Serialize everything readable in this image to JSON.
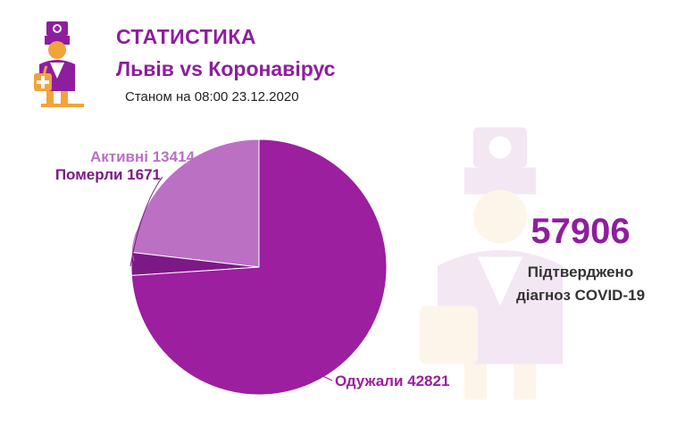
{
  "header": {
    "title": "СТАТИСТИКА",
    "subtitle": "Львів vs Коронавірус",
    "as_of": "Станом на 08:00 23.12.2020"
  },
  "summary": {
    "total": "57906",
    "label_line1": "Підтверджено",
    "label_line2": "діагноз COVID-19"
  },
  "colors": {
    "brand": "#8e1e9e",
    "recovered": "#9b1f9f",
    "died": "#7d1986",
    "active": "#bb70c4",
    "logo_orange": "#f2a33a"
  },
  "icons": {
    "logo": "doctor-icon",
    "watermark": "doctor-icon"
  },
  "chart_data": {
    "type": "pie",
    "title": "",
    "slices": [
      {
        "name": "Активні",
        "value": 13414,
        "label": "Активні 13414",
        "color": "#bb70c4"
      },
      {
        "name": "Померли",
        "value": 1671,
        "label": "Померли 1671",
        "color": "#7d1986"
      },
      {
        "name": "Одужали",
        "value": 42821,
        "label": "Одужали 42821",
        "color": "#9b1f9f"
      }
    ]
  }
}
